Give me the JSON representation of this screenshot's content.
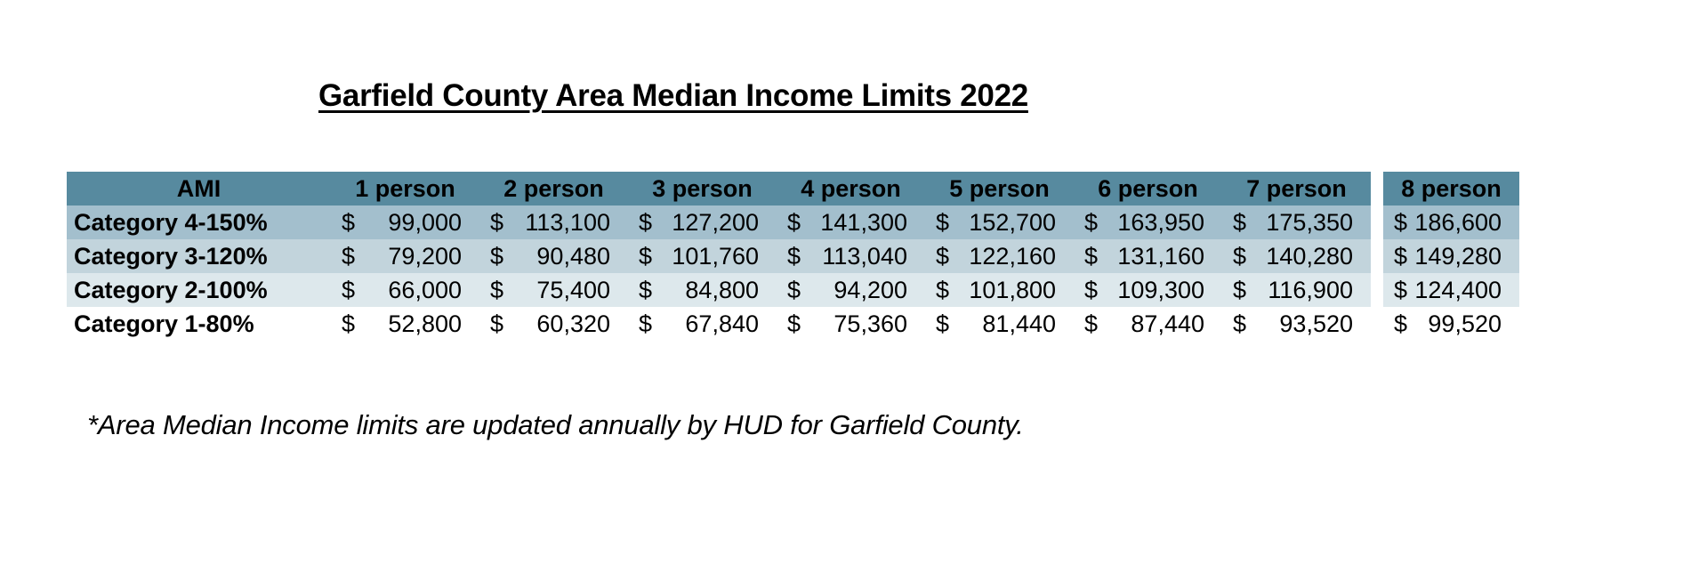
{
  "title": "Garfield County Area Median Income Limits 2022",
  "footnote": "*Area Median Income limits are updated annually by HUD for Garfield County.",
  "colors": {
    "header_bg": "#578a9f",
    "row_bg_1": "#a3bfcd",
    "row_bg_2": "#c2d4dc",
    "row_bg_3": "#dde8ec",
    "row_bg_4": "#ffffff",
    "text": "#000000"
  },
  "table": {
    "currency_symbol": "$",
    "columns": [
      "AMI",
      "1 person",
      "2 person",
      "3 person",
      "4 person",
      "5 person",
      "6 person",
      "7 person",
      "8 person"
    ],
    "rows": [
      {
        "label": "Category 4-150%",
        "values": [
          "99,000",
          "113,100",
          "127,200",
          "141,300",
          "152,700",
          "163,950",
          "175,350",
          "186,600"
        ]
      },
      {
        "label": "Category 3-120%",
        "values": [
          "79,200",
          "90,480",
          "101,760",
          "113,040",
          "122,160",
          "131,160",
          "140,280",
          "149,280"
        ]
      },
      {
        "label": "Category 2-100%",
        "values": [
          "66,000",
          "75,400",
          "84,800",
          "94,200",
          "101,800",
          "109,300",
          "116,900",
          "124,400"
        ]
      },
      {
        "label": "Category 1-80%",
        "values": [
          "52,800",
          "60,320",
          "67,840",
          "75,360",
          "81,440",
          "87,440",
          "93,520",
          "99,520"
        ]
      }
    ],
    "row_colors": [
      "#a3bfcd",
      "#c2d4dc",
      "#dde8ec",
      "#ffffff"
    ]
  }
}
